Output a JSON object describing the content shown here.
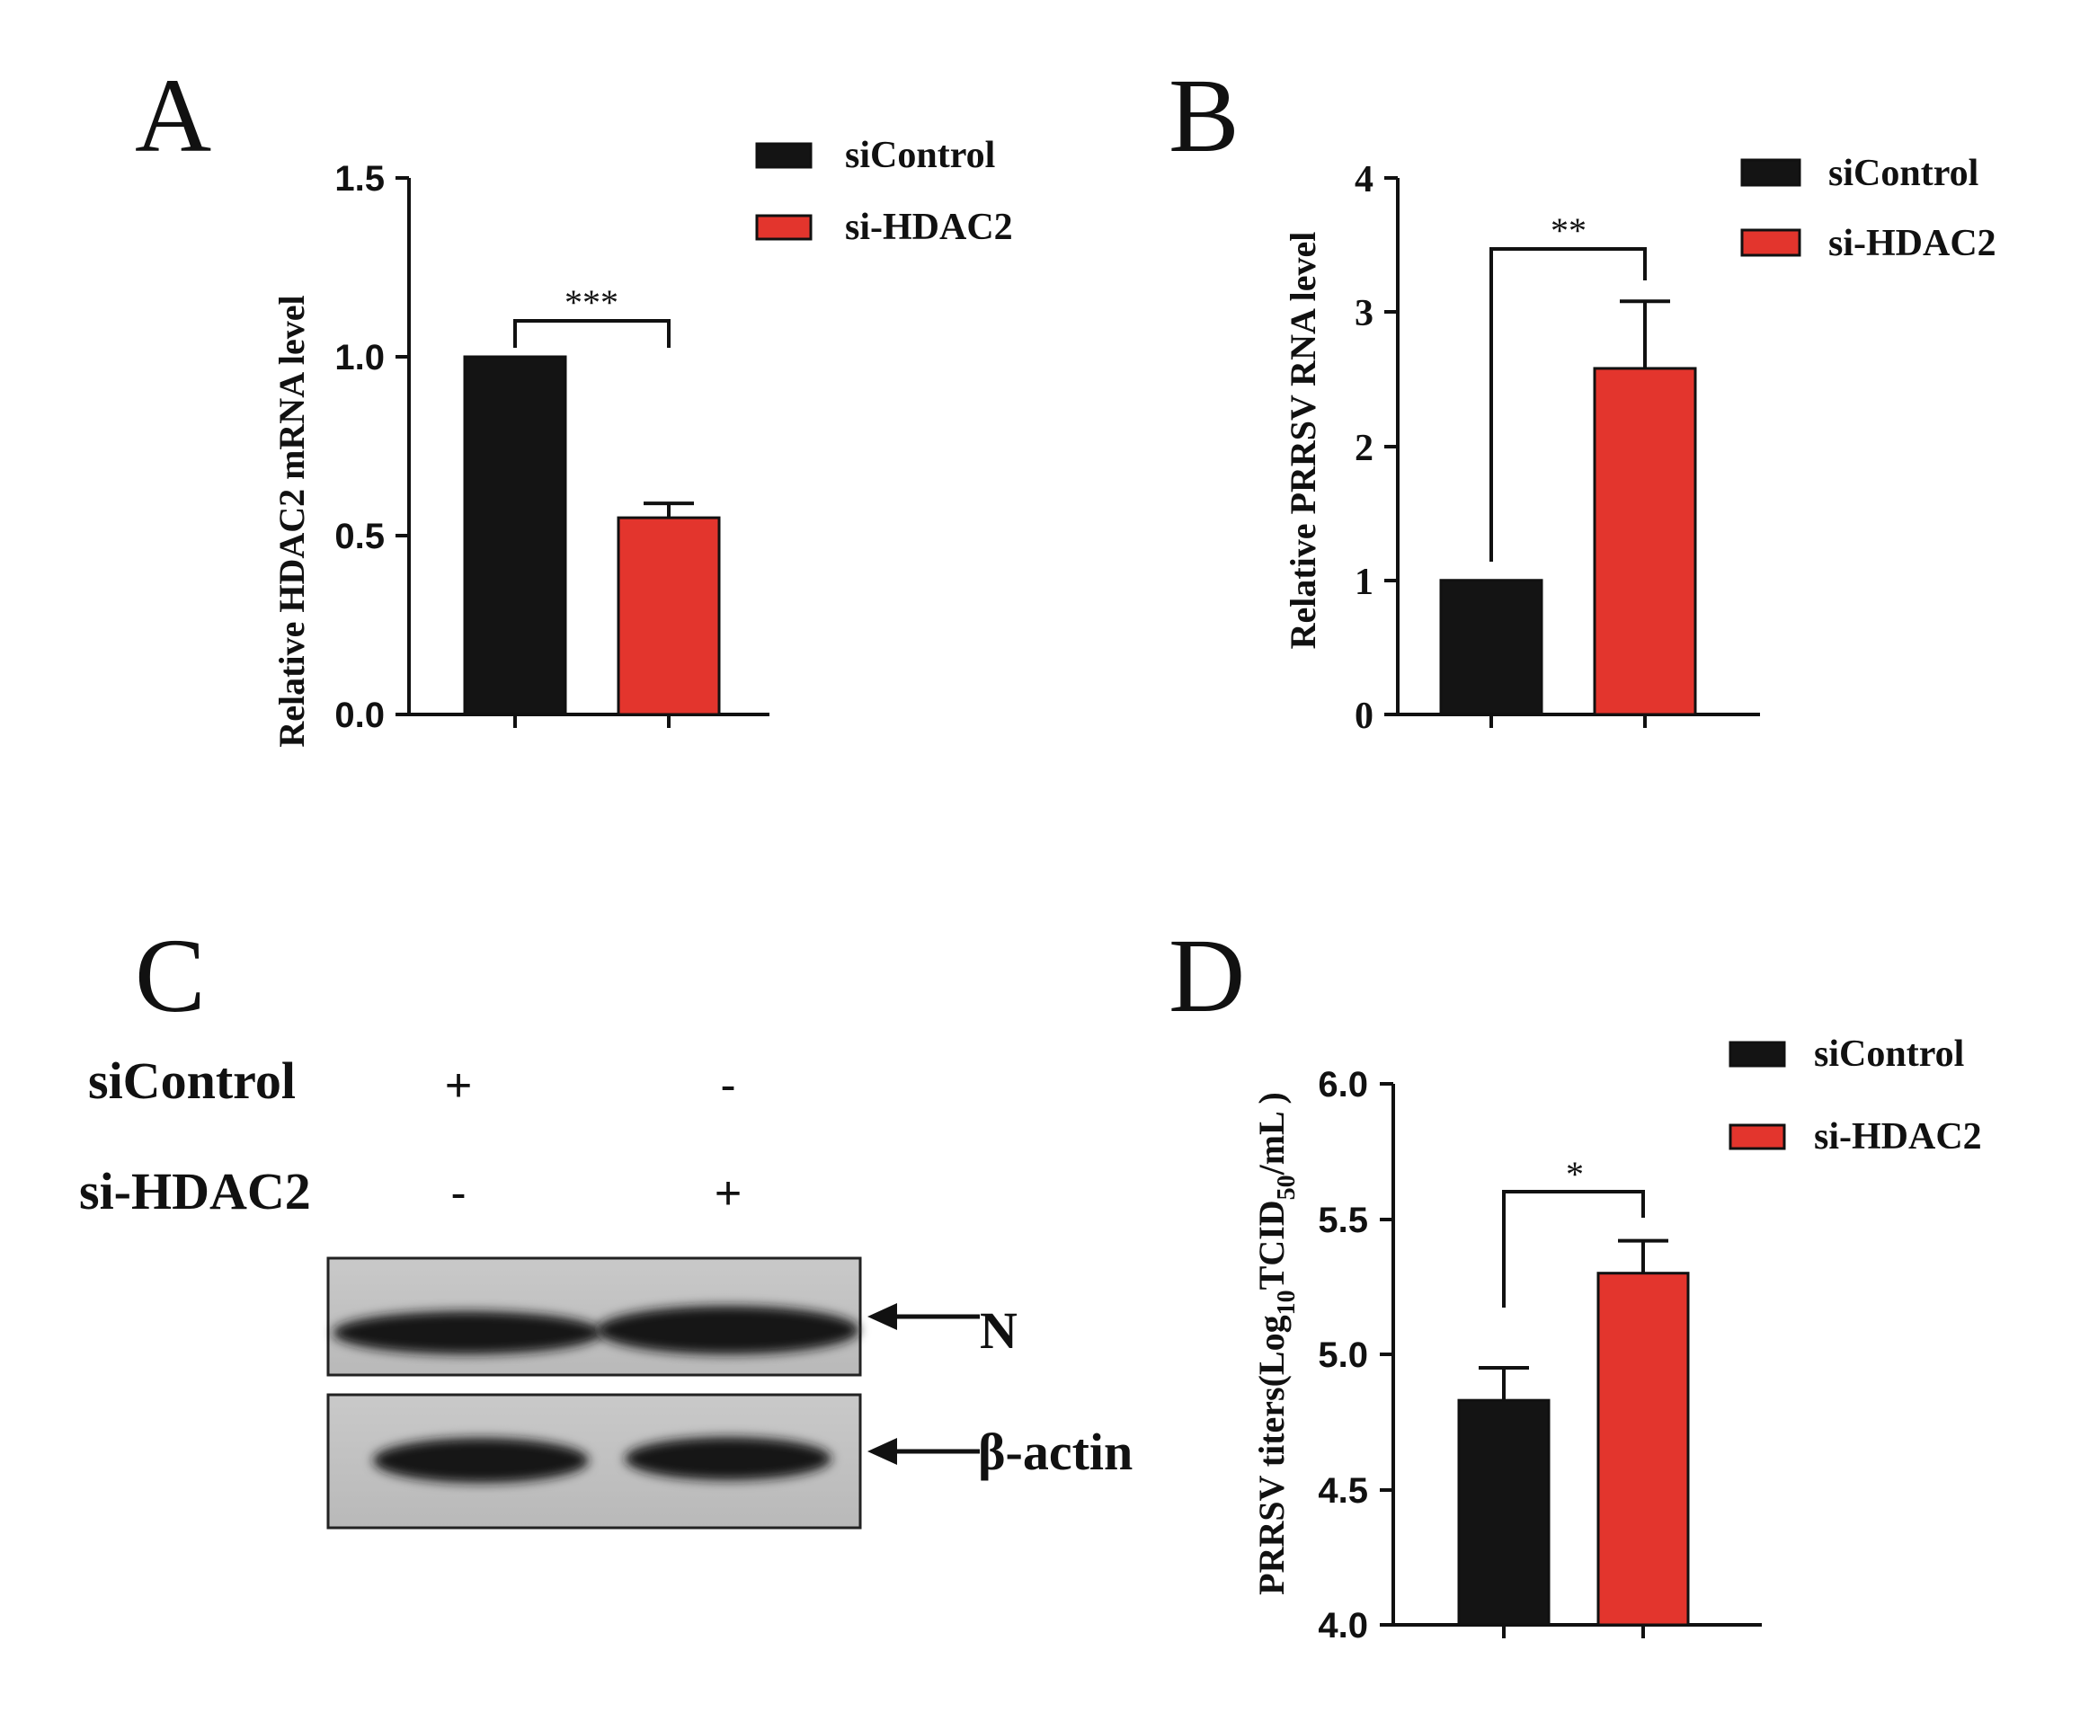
{
  "panels": [
    {
      "letter": "A",
      "ylabel": "Relative HDAC2 mRNA level",
      "ticks": [
        "0.0",
        "0.5",
        "1.0",
        "1.5"
      ],
      "significance": "***",
      "legend": [
        "siControl",
        "si-HDAC2"
      ]
    },
    {
      "letter": "B",
      "ylabel": "Relative PRRSV RNA level",
      "ticks": [
        "0",
        "1",
        "2",
        "3",
        "4"
      ],
      "significance": "**",
      "legend": [
        "siControl",
        "si-HDAC2"
      ]
    },
    {
      "letter": "C",
      "rows": [
        {
          "label": "siControl",
          "lane1": "+",
          "lane2": "-"
        },
        {
          "label": "si-HDAC2",
          "lane1": "-",
          "lane2": "+"
        }
      ],
      "bands": [
        "N",
        "β-actin"
      ]
    },
    {
      "letter": "D",
      "ylabel_prefix": "PRRSV titers(Log",
      "ylabel_sub1": "10",
      "ylabel_mid": "TCID",
      "ylabel_sub2": "50",
      "ylabel_suffix": "/mL )",
      "ticks": [
        "4.0",
        "4.5",
        "5.0",
        "5.5",
        "6.0"
      ],
      "significance": "*",
      "legend": [
        "siControl",
        "si-HDAC2"
      ]
    }
  ],
  "colors": {
    "control": "#141414",
    "treatment": "#e3352d",
    "axis": "#111111"
  },
  "chart_data": [
    {
      "panel": "A",
      "type": "bar",
      "categories": [
        "siControl",
        "si-HDAC2"
      ],
      "values": [
        1.0,
        0.55
      ],
      "errors": [
        0,
        0.04
      ],
      "ylim": [
        0,
        1.5
      ],
      "ylabel": "Relative HDAC2 mRNA level",
      "significance": "***"
    },
    {
      "panel": "B",
      "type": "bar",
      "categories": [
        "siControl",
        "si-HDAC2"
      ],
      "values": [
        1.0,
        2.58
      ],
      "errors": [
        0,
        0.5
      ],
      "ylim": [
        0,
        4
      ],
      "ylabel": "Relative PRRSV RNA level",
      "significance": "**"
    },
    {
      "panel": "D",
      "type": "bar",
      "categories": [
        "siControl",
        "si-HDAC2"
      ],
      "values": [
        4.83,
        5.3
      ],
      "errors": [
        0.12,
        0.12
      ],
      "ylim": [
        4.0,
        6.0
      ],
      "ylabel": "PRRSV titers(Log10TCID50/mL )",
      "significance": "*"
    }
  ]
}
